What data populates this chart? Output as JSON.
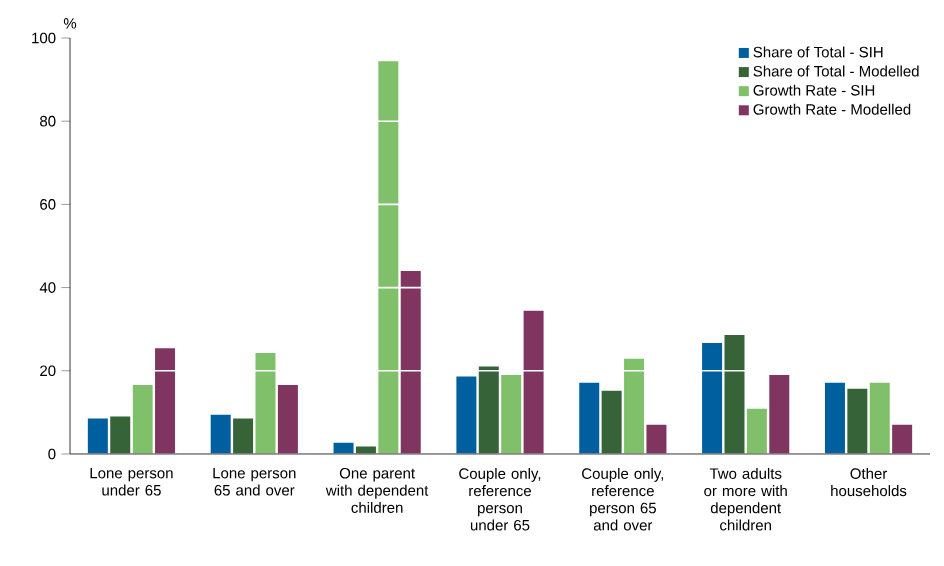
{
  "chart_data": {
    "type": "bar",
    "ylabel": "%",
    "categories": [
      "Lone person under 65",
      "Lone person 65 and over",
      "One parent with dependent children",
      "Couple only, reference person under 65",
      "Couple only, reference person 65 and over",
      "Two adults or more with dependent children",
      "Other households"
    ],
    "series": [
      {
        "name": "Share of Total - SIH",
        "color": "#00609f",
        "values": [
          8.5,
          9.4,
          2.7,
          18.6,
          17.1,
          26.7,
          17.1
        ]
      },
      {
        "name": "Share of Total - Modelled",
        "color": "#376338",
        "values": [
          9.0,
          8.5,
          1.8,
          21.0,
          15.2,
          28.6,
          15.7
        ]
      },
      {
        "name": "Growth Rate - SIH",
        "color": "#80c06a",
        "values": [
          16.6,
          24.3,
          94.4,
          19.0,
          22.9,
          10.9,
          17.1
        ]
      },
      {
        "name": "Growth Rate - Modelled",
        "color": "#803560",
        "values": [
          25.4,
          16.6,
          44.0,
          34.4,
          7.0,
          19.0,
          7.0
        ]
      }
    ],
    "ylim": [
      0,
      100
    ],
    "yticks": [
      0,
      20,
      40,
      60,
      80,
      100
    ],
    "grid": "y",
    "legend": "top right"
  }
}
